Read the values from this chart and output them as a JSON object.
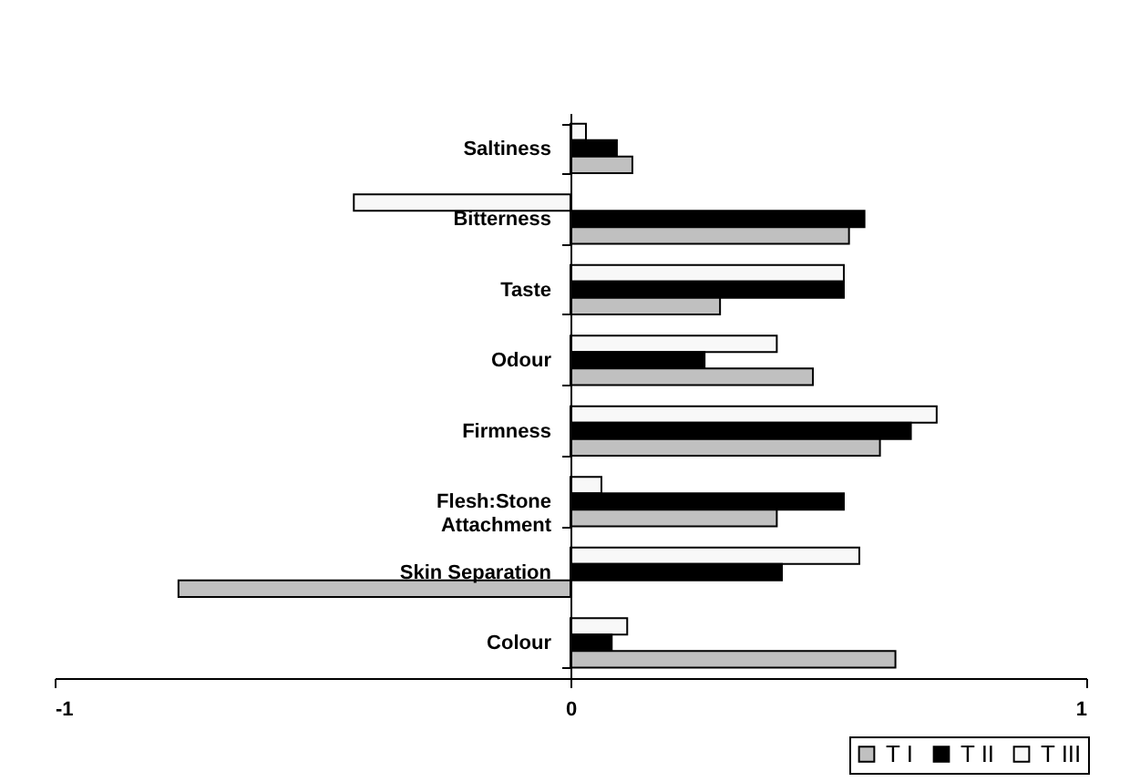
{
  "chart_data": {
    "type": "bar",
    "orientation": "horizontal",
    "categories": [
      "Saltiness",
      "Bitterness",
      "Taste",
      "Odour",
      "Firmness",
      "Flesh:Stone Attachment",
      "Skin Separation",
      "Colour"
    ],
    "series": [
      {
        "name": "T III",
        "color": "#f8f8f8",
        "values": [
          0.03,
          -0.42,
          0.53,
          0.4,
          0.71,
          0.06,
          0.56,
          0.11
        ]
      },
      {
        "name": "T II",
        "color": "#000000",
        "values": [
          0.09,
          0.57,
          0.53,
          0.26,
          0.66,
          0.53,
          0.41,
          0.08
        ]
      },
      {
        "name": "T I",
        "color": "#c0c0c0",
        "values": [
          0.12,
          0.54,
          0.29,
          0.47,
          0.6,
          0.4,
          -0.76,
          0.63
        ]
      }
    ],
    "xlim": [
      -1,
      1
    ],
    "xticks": [
      -1,
      0,
      1
    ],
    "grid": false,
    "legend": "bottom right"
  }
}
